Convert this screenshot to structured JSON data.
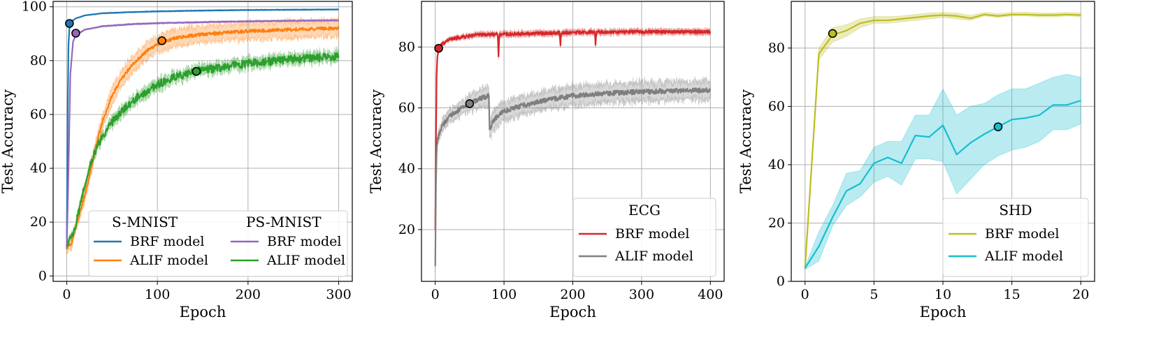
{
  "chart_data": [
    {
      "type": "line",
      "panel": "S-MNIST / PS-MNIST",
      "xlabel": "Epoch",
      "ylabel": "Test Accuracy",
      "xlim": [
        -15,
        315
      ],
      "ylim": [
        -2,
        102
      ],
      "xticks": [
        0,
        100,
        200,
        300
      ],
      "yticks": [
        0,
        20,
        40,
        60,
        80,
        100
      ],
      "grid": true,
      "legend_position": "bottom-right",
      "legend_groups": [
        {
          "title": "S-MNIST",
          "entries": [
            "BRF model",
            "ALIF model"
          ]
        },
        {
          "title": "PS-MNIST",
          "entries": [
            "BRF model",
            "ALIF model"
          ]
        }
      ],
      "series": [
        {
          "name": "BRF model",
          "group": "S-MNIST",
          "color": "#1f77b4",
          "x": [
            0,
            1,
            2,
            3,
            5,
            10,
            20,
            40,
            70,
            100,
            150,
            200,
            250,
            300
          ],
          "y": [
            10,
            60,
            86,
            92,
            94.5,
            95.7,
            96.8,
            97.6,
            98.0,
            98.3,
            98.6,
            98.8,
            98.9,
            99.0
          ],
          "band": 0.25,
          "noise": 0.05,
          "marker": {
            "x": 3,
            "y": 93.8
          }
        },
        {
          "name": "BRF model",
          "group": "PS-MNIST",
          "color": "#9467bd",
          "x": [
            0,
            2,
            4,
            7,
            10,
            20,
            40,
            70,
            100,
            150,
            200,
            250,
            300
          ],
          "y": [
            10,
            40,
            75,
            87,
            89.5,
            91.5,
            92.8,
            93.5,
            93.9,
            94.3,
            94.6,
            94.8,
            95.0
          ],
          "band": 0.3,
          "noise": 0.1,
          "marker": {
            "x": 10,
            "y": 90.2
          }
        },
        {
          "name": "ALIF model",
          "group": "S-MNIST",
          "color": "#ff7f0e",
          "x": [
            0,
            5,
            10,
            15,
            20,
            25,
            30,
            35,
            40,
            50,
            60,
            70,
            80,
            90,
            100,
            120,
            150,
            200,
            250,
            300
          ],
          "y": [
            10,
            12,
            18,
            24,
            30,
            37,
            45,
            52,
            58,
            67,
            73,
            77.5,
            81,
            84,
            86,
            88.5,
            89.8,
            90.9,
            91.6,
            92.0
          ],
          "band": 3.0,
          "noise": 0.6,
          "marker": {
            "x": 105,
            "y": 87.4
          }
        },
        {
          "name": "ALIF model",
          "group": "PS-MNIST",
          "color": "#2ca02c",
          "x": [
            0,
            5,
            10,
            15,
            20,
            25,
            30,
            35,
            40,
            50,
            60,
            80,
            100,
            120,
            143,
            170,
            200,
            250,
            300
          ],
          "y": [
            11,
            14,
            19,
            27,
            34,
            40,
            45,
            49,
            52,
            57,
            61,
            67,
            71,
            74,
            76,
            77.5,
            79,
            80.5,
            81.5
          ],
          "band": 1.8,
          "noise": 1.5,
          "marker": {
            "x": 143,
            "y": 76.0
          }
        }
      ]
    },
    {
      "type": "line",
      "panel": "ECG",
      "xlabel": "Epoch",
      "ylabel": "Test Accuracy",
      "xlim": [
        -20,
        420
      ],
      "ylim": [
        3,
        95
      ],
      "xticks": [
        0,
        100,
        200,
        300,
        400
      ],
      "yticks": [
        20,
        40,
        60,
        80
      ],
      "grid": true,
      "legend_position": "bottom-right",
      "legend_groups": [
        {
          "title": "ECG",
          "entries": [
            "BRF model",
            "ALIF model"
          ]
        }
      ],
      "series": [
        {
          "name": "BRF model",
          "color": "#d62728",
          "x": [
            0,
            1,
            2,
            3,
            5,
            10,
            20,
            40,
            60,
            100,
            150,
            200,
            250,
            300,
            350,
            400
          ],
          "y": [
            20,
            50,
            70,
            76,
            79.5,
            81,
            82.5,
            83.3,
            84,
            84.2,
            84.5,
            84.8,
            84.9,
            85.0,
            85.0,
            85.0
          ],
          "band": 0.8,
          "noise": 0.5,
          "spikes": [
            {
              "x": 92,
              "dy": -7
            },
            {
              "x": 182,
              "dy": -4
            },
            {
              "x": 233,
              "dy": -4
            }
          ],
          "marker": {
            "x": 5,
            "y": 79.6
          }
        },
        {
          "name": "ALIF model",
          "color": "#7f7f7f",
          "x": [
            0,
            1,
            2,
            3,
            5,
            10,
            20,
            35,
            50,
            65,
            78,
            79,
            85,
            100,
            130,
            160,
            200,
            250,
            300,
            350,
            400
          ],
          "y": [
            8,
            35,
            45,
            49,
            51,
            54,
            57,
            59.5,
            61.5,
            63,
            64,
            53,
            56,
            59,
            61,
            62.5,
            64,
            64.8,
            65.3,
            65.6,
            65.8
          ],
          "band": 3.0,
          "noise": 0.8,
          "marker": {
            "x": 50,
            "y": 61.4
          }
        }
      ]
    },
    {
      "type": "line",
      "panel": "SHD",
      "xlabel": "Epoch",
      "ylabel": "Test Accuracy",
      "xlim": [
        -1,
        21
      ],
      "ylim": [
        0,
        96
      ],
      "xticks": [
        0,
        5,
        10,
        15,
        20
      ],
      "yticks": [
        0,
        20,
        40,
        60,
        80
      ],
      "grid": true,
      "legend_position": "bottom-right",
      "legend_groups": [
        {
          "title": "SHD",
          "entries": [
            "BRF model",
            "ALIF model"
          ]
        }
      ],
      "series": [
        {
          "name": "BRF model",
          "color": "#bcbd22",
          "x": [
            0,
            1,
            2,
            3,
            4,
            5,
            6,
            7,
            8,
            9,
            10,
            11,
            12,
            13,
            14,
            15,
            16,
            17,
            18,
            19,
            20
          ],
          "y": [
            4.5,
            78,
            84.5,
            86,
            88.5,
            89.5,
            89.5,
            90,
            90.5,
            91,
            91.3,
            91,
            90.2,
            91.5,
            91,
            91.5,
            91.5,
            91.3,
            91.3,
            91.5,
            91.3
          ],
          "lower": [
            4.0,
            76,
            82,
            84,
            87,
            88.5,
            88.5,
            89,
            89.5,
            90,
            90.5,
            90,
            89.5,
            91,
            90.5,
            91,
            91,
            90.7,
            90.7,
            91,
            90.8
          ],
          "upper": [
            5.0,
            80,
            87,
            88,
            90,
            90.8,
            90.8,
            91,
            91.5,
            92,
            92.2,
            92,
            91.2,
            92.2,
            91.8,
            92.2,
            92.3,
            92,
            92,
            92.2,
            92
          ],
          "marker": {
            "x": 2,
            "y": 85
          }
        },
        {
          "name": "ALIF model",
          "color": "#17becf",
          "x": [
            0,
            1,
            2,
            3,
            4,
            5,
            6,
            7,
            8,
            9,
            10,
            11,
            12,
            13,
            14,
            15,
            16,
            17,
            18,
            19,
            20
          ],
          "y": [
            4.5,
            12,
            22,
            31,
            33.5,
            40.5,
            42.5,
            40.5,
            50,
            49.5,
            53.5,
            43.5,
            47.5,
            50.5,
            53,
            55.5,
            56,
            57,
            60.5,
            60.5,
            62
          ],
          "lower": [
            4.0,
            7,
            19,
            26,
            29,
            34,
            36,
            33,
            42,
            42,
            41,
            30,
            35,
            40,
            43,
            45,
            46,
            48,
            52,
            52,
            54
          ],
          "upper": [
            5.0,
            17,
            26,
            37,
            38,
            46,
            48,
            48,
            57,
            57,
            66,
            57,
            60,
            61,
            64,
            66,
            66,
            68,
            70,
            71,
            70
          ],
          "marker": {
            "x": 14,
            "y": 53
          }
        }
      ]
    }
  ]
}
